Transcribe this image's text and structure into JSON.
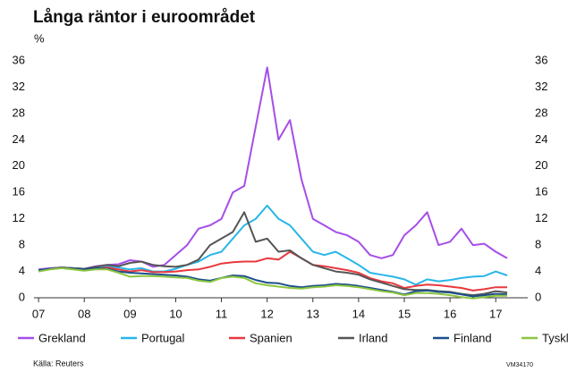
{
  "chart_data": {
    "type": "line",
    "title": "Långa räntor i euroområdet",
    "y_label": "%",
    "source": "Källa: Reuters",
    "code": "VM34170",
    "x": [
      7,
      7.25,
      7.5,
      7.75,
      8,
      8.25,
      8.5,
      8.75,
      9,
      9.25,
      9.5,
      9.75,
      10,
      10.25,
      10.5,
      10.75,
      11,
      11.25,
      11.5,
      11.75,
      12,
      12.25,
      12.5,
      12.75,
      13,
      13.25,
      13.5,
      13.75,
      14,
      14.25,
      14.5,
      14.75,
      15,
      15.25,
      15.5,
      15.75,
      16,
      16.25,
      16.5,
      16.75,
      17,
      17.25
    ],
    "series": [
      {
        "name": "Grekland",
        "color": "#a64ee8",
        "values": [
          4.3,
          4.5,
          4.6,
          4.5,
          4.4,
          4.8,
          5.0,
          5.1,
          5.7,
          5.5,
          4.7,
          5.0,
          6.5,
          8.0,
          10.5,
          11.0,
          12.0,
          16.0,
          17.0,
          26.0,
          35.0,
          24.0,
          27.0,
          18.0,
          12.0,
          11.0,
          10.0,
          9.5,
          8.5,
          6.5,
          6.0,
          6.5,
          9.5,
          11.0,
          13.0,
          8.0,
          8.5,
          10.5,
          8.0,
          8.2,
          7.0,
          6.0
        ]
      },
      {
        "name": "Portugal",
        "color": "#29b6e8",
        "values": [
          4.2,
          4.4,
          4.6,
          4.5,
          4.4,
          4.6,
          4.8,
          4.6,
          4.3,
          4.5,
          4.0,
          4.0,
          4.4,
          5.0,
          5.5,
          6.5,
          7.0,
          9.0,
          11.0,
          12.0,
          14.0,
          12.0,
          11.0,
          9.0,
          7.0,
          6.5,
          7.0,
          6.0,
          5.0,
          3.8,
          3.5,
          3.2,
          2.8,
          2.0,
          2.8,
          2.5,
          2.7,
          3.0,
          3.2,
          3.3,
          4.0,
          3.4
        ]
      },
      {
        "name": "Spanien",
        "color": "#e8393f",
        "values": [
          4.1,
          4.4,
          4.6,
          4.4,
          4.2,
          4.4,
          4.6,
          4.3,
          4.0,
          4.2,
          3.9,
          3.9,
          4.0,
          4.2,
          4.3,
          4.7,
          5.2,
          5.4,
          5.5,
          5.5,
          6.0,
          5.8,
          7.0,
          6.0,
          5.0,
          4.8,
          4.5,
          4.2,
          3.8,
          3.0,
          2.5,
          2.2,
          1.5,
          1.8,
          2.0,
          1.9,
          1.7,
          1.5,
          1.1,
          1.3,
          1.6,
          1.6
        ]
      },
      {
        "name": "Irland",
        "color": "#555555",
        "values": [
          4.2,
          4.4,
          4.6,
          4.5,
          4.4,
          4.7,
          5.0,
          4.8,
          5.3,
          5.5,
          5.0,
          4.8,
          4.7,
          5.0,
          5.8,
          8.0,
          9.0,
          10.0,
          13.0,
          8.5,
          9.0,
          7.0,
          7.2,
          6.0,
          5.0,
          4.5,
          4.0,
          3.8,
          3.5,
          2.8,
          2.3,
          1.8,
          1.3,
          1.2,
          1.2,
          1.0,
          0.9,
          0.6,
          0.4,
          0.6,
          1.0,
          0.8
        ]
      },
      {
        "name": "Finland",
        "color": "#1b4f8a",
        "values": [
          4.2,
          4.4,
          4.5,
          4.4,
          4.3,
          4.5,
          4.4,
          4.0,
          3.8,
          3.7,
          3.6,
          3.5,
          3.4,
          3.2,
          2.8,
          2.6,
          3.0,
          3.4,
          3.3,
          2.7,
          2.3,
          2.2,
          1.8,
          1.6,
          1.8,
          1.9,
          2.1,
          2.0,
          1.8,
          1.5,
          1.2,
          0.9,
          0.5,
          1.0,
          1.1,
          0.9,
          0.8,
          0.5,
          0.2,
          0.4,
          0.6,
          0.5
        ]
      },
      {
        "name": "Tyskland",
        "color": "#8dc63f",
        "values": [
          4.0,
          4.3,
          4.5,
          4.3,
          4.1,
          4.3,
          4.3,
          3.8,
          3.2,
          3.3,
          3.3,
          3.2,
          3.1,
          3.0,
          2.6,
          2.4,
          3.0,
          3.2,
          3.0,
          2.2,
          1.9,
          1.7,
          1.5,
          1.4,
          1.6,
          1.7,
          1.9,
          1.8,
          1.6,
          1.3,
          1.0,
          0.8,
          0.4,
          0.7,
          0.7,
          0.6,
          0.4,
          0.1,
          -0.1,
          0.1,
          0.3,
          0.3
        ]
      }
    ],
    "xlim": [
      6.9,
      17.7
    ],
    "xticks": [
      {
        "value": 7,
        "label": "07"
      },
      {
        "value": 8,
        "label": "08"
      },
      {
        "value": 9,
        "label": "09"
      },
      {
        "value": 10,
        "label": "10"
      },
      {
        "value": 11,
        "label": "11"
      },
      {
        "value": 12,
        "label": "12"
      },
      {
        "value": 13,
        "label": "13"
      },
      {
        "value": 14,
        "label": "14"
      },
      {
        "value": 15,
        "label": "15"
      },
      {
        "value": 16,
        "label": "16"
      },
      {
        "value": 17,
        "label": "17"
      }
    ],
    "ylim": [
      0,
      36
    ],
    "yticks": [
      0,
      4,
      8,
      12,
      16,
      20,
      24,
      28,
      32,
      36
    ],
    "y2lim": [
      0,
      36
    ],
    "y2ticks": [
      0,
      4,
      8,
      12,
      16,
      20,
      24,
      28,
      32,
      36
    ],
    "grid": false,
    "legend": "bottom"
  }
}
